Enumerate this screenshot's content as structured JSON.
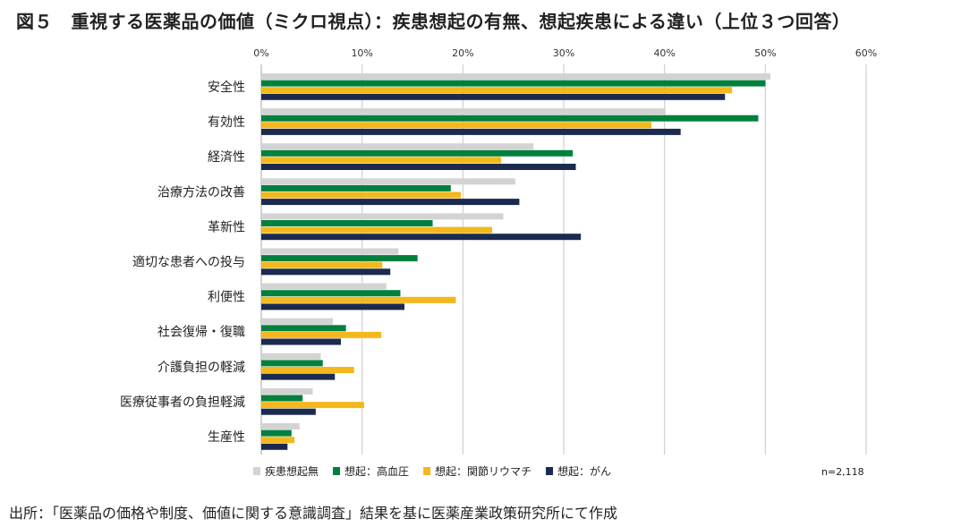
{
  "title": "図５　重視する医薬品の価値（ミクロ視点）：疾患想起の有無、想起疾患による違い（上位３つ回答）",
  "footer": "出所：「医薬品の価格や制度、価値に関する意識調査」結果を基に医薬産業政策研究所にて作成",
  "chart_data": {
    "type": "bar",
    "orientation": "horizontal",
    "title": "図５　重視する医薬品の価値（ミクロ視点）：疾患想起の有無、想起疾患による違い（上位３つ回答）",
    "xlim": [
      0,
      60
    ],
    "xticks": [
      "0%",
      "10%",
      "20%",
      "30%",
      "40%",
      "50%",
      "60%"
    ],
    "x_axis_position": "top",
    "grid": true,
    "legend_position": "bottom",
    "annotation": "n=2,118",
    "categories": [
      "安全性",
      "有効性",
      "経済性",
      "治療方法の改善",
      "革新性",
      "適切な患者への投与",
      "利便性",
      "社会復帰・復職",
      "介護負担の軽減",
      "医療従事者の負担軽減",
      "生産性"
    ],
    "series": [
      {
        "name": "疾患想起無",
        "color": "#d3d3d3",
        "values": [
          50.5,
          40.1,
          27.0,
          25.2,
          24.0,
          13.6,
          12.4,
          7.1,
          5.9,
          5.1,
          3.8
        ]
      },
      {
        "name": "想起：高血圧",
        "color": "#00803d",
        "values": [
          50.0,
          49.3,
          30.9,
          18.8,
          17.0,
          15.5,
          13.8,
          8.4,
          6.1,
          4.1,
          3.0
        ]
      },
      {
        "name": "想起：関節リウマチ",
        "color": "#f4b81c",
        "values": [
          46.7,
          38.7,
          23.8,
          19.8,
          22.9,
          12.0,
          19.3,
          11.9,
          9.2,
          10.2,
          3.3
        ]
      },
      {
        "name": "想起：がん",
        "color": "#1b2a4e",
        "values": [
          46.0,
          41.6,
          31.2,
          25.6,
          31.7,
          12.8,
          14.2,
          7.9,
          7.3,
          5.4,
          2.6
        ]
      }
    ]
  }
}
